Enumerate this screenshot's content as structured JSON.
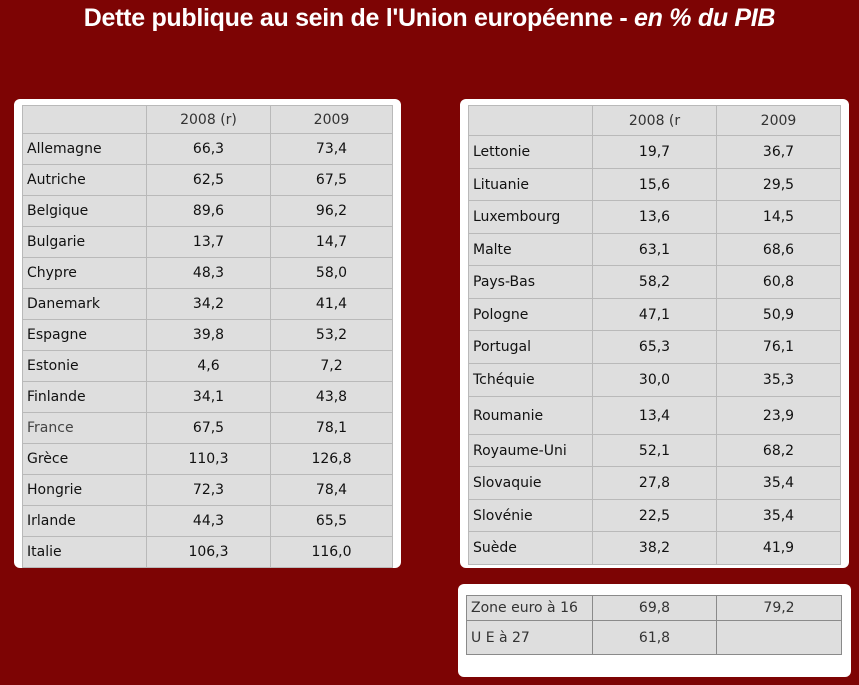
{
  "title": {
    "main": "Dette publique au sein de l'Union européenne - ",
    "emphasis": "en % du PIB"
  },
  "left_table": {
    "headers": [
      "",
      "2008 (r)",
      "2009"
    ],
    "rows": [
      [
        "Allemagne",
        "66,3",
        "73,4"
      ],
      [
        "Autriche",
        "62,5",
        "67,5"
      ],
      [
        "Belgique",
        "89,6",
        "96,2"
      ],
      [
        "Bulgarie",
        "13,7",
        "14,7"
      ],
      [
        "Chypre",
        "48,3",
        "58,0"
      ],
      [
        "Danemark",
        "34,2",
        "41,4"
      ],
      [
        "Espagne",
        "39,8",
        "53,2"
      ],
      [
        "Estonie",
        "4,6",
        "7,2"
      ],
      [
        "Finlande",
        "34,1",
        "43,8"
      ],
      [
        "France",
        "67,5",
        "78,1"
      ],
      [
        "Grèce",
        "110,3",
        "126,8"
      ],
      [
        "Hongrie",
        "72,3",
        "78,4"
      ],
      [
        "Irlande",
        "44,3",
        "65,5"
      ],
      [
        "Italie",
        "106,3",
        "116,0"
      ]
    ]
  },
  "right_table": {
    "headers": [
      "",
      "2008 (r",
      "2009"
    ],
    "rows": [
      [
        "Lettonie",
        "19,7",
        "36,7"
      ],
      [
        "Lituanie",
        "15,6",
        "29,5"
      ],
      [
        "Luxembourg",
        "13,6",
        "14,5"
      ],
      [
        "Malte",
        "63,1",
        "68,6"
      ],
      [
        "Pays-Bas",
        "58,2",
        "60,8"
      ],
      [
        "Pologne",
        "47,1",
        "50,9"
      ],
      [
        "Portugal",
        "65,3",
        "76,1"
      ],
      [
        "Tchéquie",
        "30,0",
        "35,3"
      ],
      [
        "Roumanie",
        "13,4",
        "23,9"
      ],
      [
        "Royaume-Uni",
        "52,1",
        "68,2"
      ],
      [
        "Slovaquie",
        "27,8",
        "35,4"
      ],
      [
        "Slovénie",
        "22,5",
        "35,4"
      ],
      [
        "Suède",
        "38,2",
        "41,9"
      ]
    ]
  },
  "euro_table": {
    "rows": [
      [
        "Zone euro à 16",
        "69,8",
        "79,2"
      ],
      [
        "U E  à 27",
        "61,8",
        ""
      ]
    ]
  }
}
